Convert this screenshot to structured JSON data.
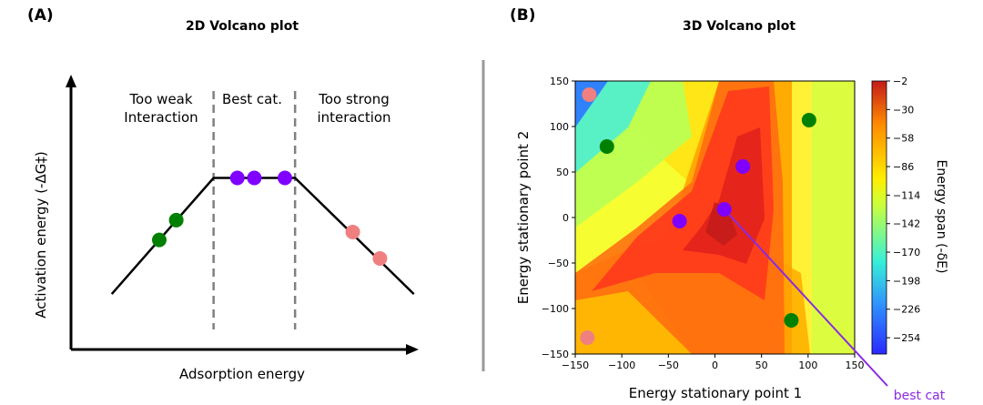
{
  "chart_data": [
    {
      "type": "line",
      "panel_label": "(A)",
      "title": "2D Volcano plot",
      "xlabel": "Adsorption energy",
      "ylabel": "Activation energy (-ΔG‡)",
      "region_labels": {
        "weak": [
          "Too weak",
          "Interaction"
        ],
        "best": [
          "Best cat."
        ],
        "strong": [
          "Too strong",
          "interaction"
        ]
      },
      "xlim": [
        0,
        10
      ],
      "ylim": [
        0,
        10
      ],
      "volcano_line": {
        "x": [
          1.2,
          4.2,
          6.6,
          10.1
        ],
        "y": [
          2.1,
          6.5,
          6.5,
          2.1
        ]
      },
      "dividers_x": [
        4.2,
        6.6
      ],
      "series": [
        {
          "name": "too weak",
          "color": "#008000",
          "x": [
            2.6,
            3.1
          ],
          "y": [
            4.15,
            4.9
          ]
        },
        {
          "name": "best",
          "color": "#7f00ff",
          "x": [
            4.9,
            5.4,
            6.3
          ],
          "y": [
            6.5,
            6.5,
            6.5
          ]
        },
        {
          "name": "too strong",
          "color": "#f08080",
          "x": [
            8.3,
            9.1
          ],
          "y": [
            4.45,
            3.45
          ]
        }
      ]
    },
    {
      "type": "heatmap",
      "panel_label": "(B)",
      "title": "3D Volcano plot",
      "xlabel": "Energy stationary point 1",
      "ylabel": "Energy stationary point 2",
      "xlim": [
        -150,
        150
      ],
      "ylim": [
        -150,
        150
      ],
      "xticks": [
        -150,
        -100,
        -50,
        0,
        50,
        100,
        150
      ],
      "yticks": [
        -150,
        -100,
        -50,
        0,
        50,
        100,
        150
      ],
      "colorbar": {
        "label": "Energy span (-δE)",
        "range": [
          -270,
          -2
        ],
        "ticks": [
          -2,
          -30,
          -58,
          -86,
          -114,
          -142,
          -170,
          -198,
          -226,
          -254
        ]
      },
      "points": [
        {
          "x": -135,
          "y": 135,
          "color": "#f08080"
        },
        {
          "x": -137,
          "y": -132,
          "color": "#f08080"
        },
        {
          "x": -116,
          "y": 78,
          "color": "#008000"
        },
        {
          "x": 101,
          "y": 107,
          "color": "#008000"
        },
        {
          "x": 82,
          "y": -113,
          "color": "#008000"
        },
        {
          "x": 30,
          "y": 56,
          "color": "#7f00ff"
        },
        {
          "x": -38,
          "y": -4,
          "color": "#7f00ff"
        },
        {
          "x": 10,
          "y": 9,
          "color": "#7f00ff"
        }
      ],
      "annotation": {
        "text": "best cat",
        "target": {
          "x": 10,
          "y": 9
        },
        "color": "#8a2be2"
      }
    }
  ],
  "colors": {
    "green": "#008000",
    "purple": "#7f00ff",
    "pink": "#f08080",
    "separator": "#999999"
  }
}
